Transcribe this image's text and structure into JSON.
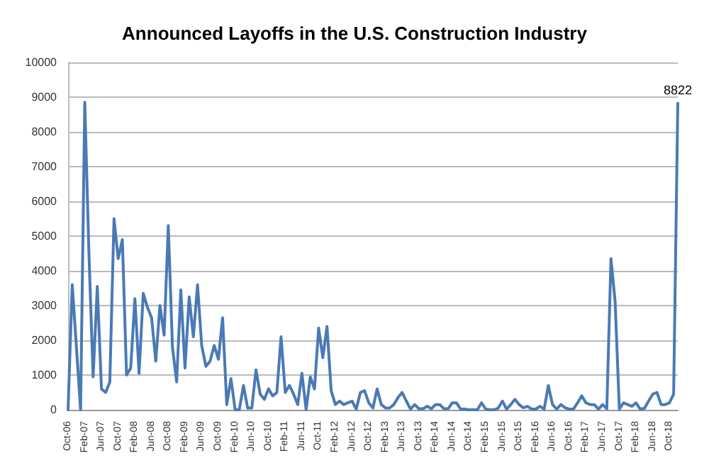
{
  "chart_data": {
    "type": "line",
    "title": "Announced Layoffs in the U.S. Construction Industry",
    "categories": [
      "Oct-06",
      null,
      null,
      null,
      "Feb-07",
      null,
      null,
      null,
      "Jun-07",
      null,
      null,
      null,
      "Oct-07",
      null,
      null,
      null,
      "Feb-08",
      null,
      null,
      null,
      "Jun-08",
      null,
      null,
      null,
      "Oct-08",
      null,
      null,
      null,
      "Feb-09",
      null,
      null,
      null,
      "Jun-09",
      null,
      null,
      null,
      "Oct-09",
      null,
      null,
      null,
      "Feb-10",
      null,
      null,
      null,
      "Jun-10",
      null,
      null,
      null,
      "Oct-10",
      null,
      null,
      null,
      "Feb-11",
      null,
      null,
      null,
      "Jun-11",
      null,
      null,
      null,
      "Oct-11",
      null,
      null,
      null,
      "Feb-12",
      null,
      null,
      null,
      "Jun-12",
      null,
      null,
      null,
      "Oct-12",
      null,
      null,
      null,
      "Feb-13",
      null,
      null,
      null,
      "Jun-13",
      null,
      null,
      null,
      "Oct-13",
      null,
      null,
      null,
      "Feb-14",
      null,
      null,
      null,
      "Jun-14",
      null,
      null,
      null,
      "Oct-14",
      null,
      null,
      null,
      "Feb-15",
      null,
      null,
      null,
      "Jun-15",
      null,
      null,
      null,
      "Oct-15",
      null,
      null,
      null,
      "Feb-16",
      null,
      null,
      null,
      "Jun-16",
      null,
      null,
      null,
      "Oct-16",
      null,
      null,
      null,
      "Feb-17",
      null,
      null,
      null,
      "Jun-17",
      null,
      null,
      null,
      "Oct-17",
      null,
      null,
      null,
      "Feb-18",
      null,
      null,
      null,
      "Jun-18",
      null,
      null,
      null,
      "Oct-18",
      null,
      null
    ],
    "values": [
      0,
      3600,
      1800,
      0,
      8850,
      4500,
      950,
      3550,
      600,
      500,
      800,
      5500,
      4350,
      4900,
      1000,
      1200,
      3200,
      1050,
      3350,
      2950,
      2650,
      1400,
      3000,
      2150,
      5300,
      1800,
      800,
      3450,
      1200,
      3250,
      2100,
      3600,
      1850,
      1250,
      1400,
      1850,
      1450,
      2650,
      150,
      900,
      0,
      0,
      700,
      50,
      50,
      1150,
      450,
      300,
      600,
      400,
      500,
      2100,
      500,
      700,
      450,
      150,
      1050,
      0,
      950,
      600,
      2350,
      1500,
      2400,
      550,
      150,
      250,
      150,
      200,
      250,
      20,
      500,
      550,
      200,
      50,
      600,
      150,
      50,
      50,
      150,
      350,
      500,
      250,
      20,
      150,
      30,
      30,
      100,
      30,
      150,
      150,
      30,
      30,
      200,
      200,
      20,
      20,
      0,
      0,
      0,
      200,
      20,
      0,
      0,
      50,
      250,
      20,
      150,
      300,
      150,
      60,
      100,
      20,
      20,
      100,
      20,
      700,
      150,
      20,
      150,
      60,
      20,
      20,
      200,
      400,
      200,
      150,
      150,
      20,
      150,
      30,
      4350,
      3100,
      20,
      200,
      150,
      100,
      200,
      20,
      40,
      250,
      450,
      500,
      150,
      150,
      200,
      450,
      8822
    ],
    "value_labels": [
      null,
      null,
      null,
      null,
      null,
      null,
      null,
      null,
      null,
      null,
      null,
      null,
      null,
      null,
      null,
      null,
      null,
      null,
      null,
      null,
      null,
      null,
      null,
      null,
      null,
      null,
      null,
      null,
      null,
      null,
      null,
      null,
      null,
      null,
      null,
      null,
      null,
      null,
      null,
      null,
      null,
      null,
      null,
      null,
      null,
      null,
      null,
      null,
      null,
      null,
      null,
      null,
      null,
      null,
      null,
      null,
      null,
      null,
      null,
      null,
      null,
      null,
      null,
      null,
      null,
      null,
      null,
      null,
      null,
      null,
      null,
      null,
      null,
      null,
      null,
      null,
      null,
      null,
      null,
      null,
      null,
      null,
      null,
      null,
      null,
      null,
      null,
      null,
      null,
      null,
      null,
      null,
      null,
      null,
      null,
      null,
      null,
      null,
      null,
      null,
      null,
      null,
      null,
      null,
      null,
      null,
      null,
      null,
      null,
      null,
      null,
      null,
      null,
      null,
      null,
      null,
      null,
      null,
      null,
      null,
      null,
      null,
      null,
      null,
      null,
      null,
      null,
      null,
      null,
      null,
      null,
      null,
      null,
      null,
      null,
      null,
      null,
      null,
      null,
      null,
      null,
      null,
      null,
      null,
      null,
      null,
      "8822"
    ],
    "color": "#4a7ab5",
    "ylim": [
      0,
      10000
    ],
    "yticks": [
      0,
      1000,
      2000,
      3000,
      4000,
      5000,
      6000,
      7000,
      8000,
      9000,
      10000
    ],
    "grid": "y",
    "marker": "none",
    "line_style": "solid"
  }
}
